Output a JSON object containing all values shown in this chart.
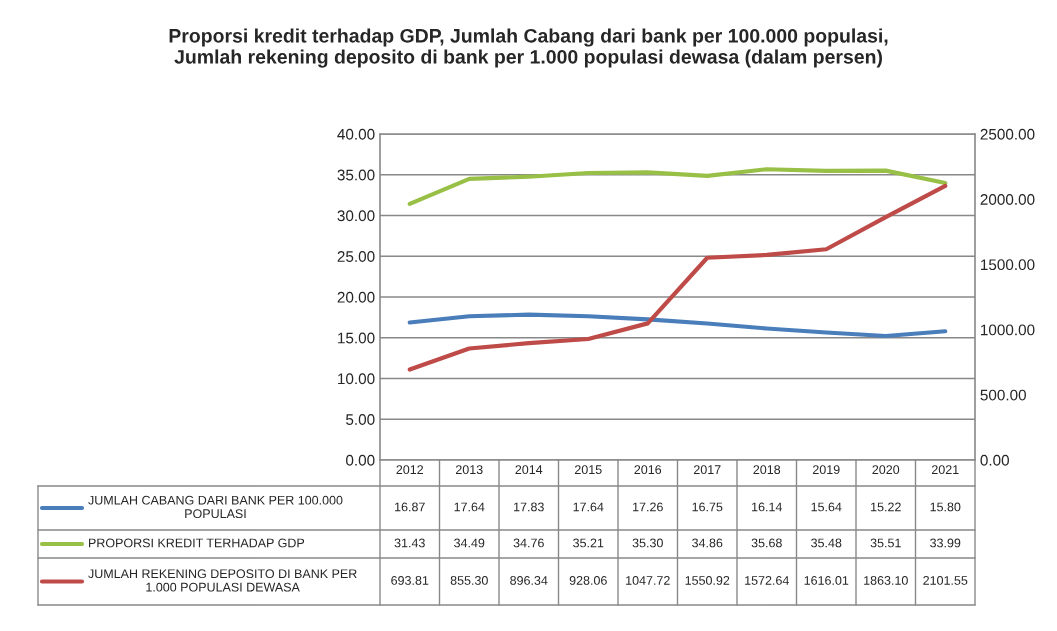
{
  "chart_data": {
    "type": "line",
    "title": "Proporsi kredit terhadap GDP, Jumlah Cabang dari bank per 100.000 populasi, Jumlah rekening deposito di bank per 1.000 populasi dewasa (dalam persen)",
    "categories": [
      "2012",
      "2013",
      "2014",
      "2015",
      "2016",
      "2017",
      "2018",
      "2019",
      "2020",
      "2021"
    ],
    "series": [
      {
        "name": "JUMLAH CABANG DARI BANK PER 100.000 POPULASI",
        "color": "#4a7ebb",
        "values": [
          16.87,
          17.64,
          17.83,
          17.64,
          17.26,
          16.75,
          16.14,
          15.64,
          15.22,
          15.8
        ],
        "value_labels": [
          "16.87",
          "17.64",
          "17.83",
          "17.64",
          "17.26",
          "16.75",
          "16.14",
          "15.64",
          "15.22",
          "15.80"
        ]
      },
      {
        "name": "PROPORSI KREDIT TERHADAP GDP",
        "color": "#98c047",
        "values": [
          31.43,
          34.49,
          34.76,
          35.21,
          35.3,
          34.86,
          35.68,
          35.48,
          35.51,
          33.99
        ],
        "value_labels": [
          "31.43",
          "34.49",
          "34.76",
          "35.21",
          "35.30",
          "34.86",
          "35.68",
          "35.48",
          "35.51",
          "33.99"
        ]
      },
      {
        "name": "JUMLAH REKENING DEPOSITO DI BANK PER 1.000 POPULASI DEWASA",
        "color": "#be4b48",
        "axis": "y2",
        "values": [
          693.81,
          855.3,
          896.34,
          928.06,
          1047.72,
          1550.92,
          1572.64,
          1616.01,
          1863.1,
          2101.55
        ],
        "value_labels": [
          "693.81",
          "855.30",
          "896.34",
          "928.06",
          "1047.72",
          "1550.92",
          "1572.64",
          "1616.01",
          "1863.10",
          "2101.55"
        ]
      }
    ],
    "ylim": [
      0,
      40
    ],
    "yticks": [
      {
        "value": 0,
        "label": "0.00"
      },
      {
        "value": 5,
        "label": "5.00"
      },
      {
        "value": 10,
        "label": "10.00"
      },
      {
        "value": 15,
        "label": "15.00"
      },
      {
        "value": 20,
        "label": "20.00"
      },
      {
        "value": 25,
        "label": "25.00"
      },
      {
        "value": 30,
        "label": "30.00"
      },
      {
        "value": 35,
        "label": "35.00"
      },
      {
        "value": 40,
        "label": "40.00"
      }
    ],
    "y2lim": [
      0,
      2500
    ],
    "y2ticks": [
      {
        "value": 0,
        "label": "0.00"
      },
      {
        "value": 500,
        "label": "500.00"
      },
      {
        "value": 1000,
        "label": "1000.00"
      },
      {
        "value": 1500,
        "label": "1500.00"
      },
      {
        "value": 2000,
        "label": "2000.00"
      },
      {
        "value": 2500,
        "label": "2500.00"
      }
    ],
    "grid": "y",
    "legend": "bottom",
    "marker": "none",
    "line_style": "solid"
  }
}
